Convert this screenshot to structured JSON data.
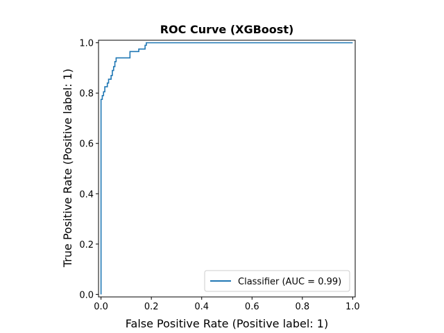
{
  "chart_data": {
    "type": "line",
    "title": "ROC Curve (XGBoost)",
    "xlabel": "False Positive Rate (Positive label: 1)",
    "ylabel": "True Positive Rate (Positive label: 1)",
    "xlim": [
      -0.01,
      1.01
    ],
    "ylim": [
      -0.01,
      1.01
    ],
    "xticks": [
      0.0,
      0.2,
      0.4,
      0.6,
      0.8,
      1.0
    ],
    "yticks": [
      0.0,
      0.2,
      0.4,
      0.6,
      0.8,
      1.0
    ],
    "xtick_labels": [
      "0.0",
      "0.2",
      "0.4",
      "0.6",
      "0.8",
      "1.0"
    ],
    "ytick_labels": [
      "0.0",
      "0.2",
      "0.4",
      "0.6",
      "0.8",
      "1.0"
    ],
    "grid": false,
    "legend": "lower-right",
    "series": [
      {
        "name": "Classifier (AUC = 0.99)",
        "color": "#1f77b4",
        "x": [
          0.0,
          0.0,
          0.005,
          0.005,
          0.01,
          0.01,
          0.015,
          0.015,
          0.025,
          0.025,
          0.03,
          0.03,
          0.04,
          0.04,
          0.045,
          0.045,
          0.05,
          0.05,
          0.055,
          0.055,
          0.06,
          0.06,
          0.065,
          0.065,
          0.115,
          0.115,
          0.15,
          0.15,
          0.175,
          0.175,
          0.18,
          0.18,
          1.0
        ],
        "y": [
          0.0,
          0.775,
          0.775,
          0.79,
          0.79,
          0.805,
          0.805,
          0.825,
          0.825,
          0.84,
          0.84,
          0.855,
          0.855,
          0.87,
          0.87,
          0.89,
          0.89,
          0.905,
          0.905,
          0.925,
          0.925,
          0.94,
          0.94,
          0.94,
          0.94,
          0.965,
          0.965,
          0.975,
          0.975,
          0.99,
          0.99,
          1.0,
          1.0
        ]
      }
    ]
  }
}
